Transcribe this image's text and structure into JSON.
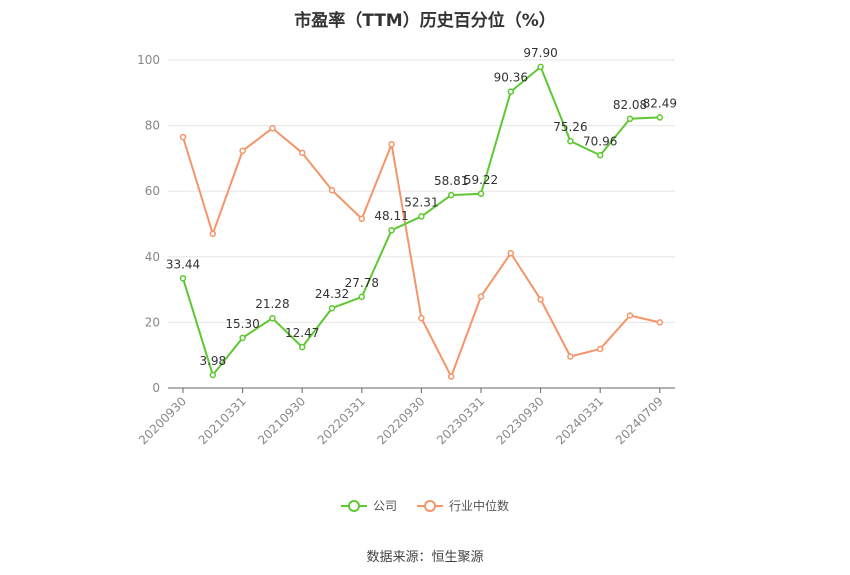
{
  "chart_data": {
    "type": "line",
    "title": "市盈率（TTM）历史百分位（%）",
    "source": "数据来源：恒生聚源",
    "ylim": [
      0,
      100
    ],
    "yticks": [
      0,
      20,
      40,
      60,
      80,
      100
    ],
    "xticks": [
      "20200930",
      "20210331",
      "20210930",
      "20220331",
      "20220930",
      "20230331",
      "20230930",
      "20240331",
      "20240709"
    ],
    "x": [
      "20200930",
      "20201231",
      "20210331",
      "20210630",
      "20210930",
      "20211231",
      "20220331",
      "20220630",
      "20220930",
      "20221231",
      "20230331",
      "20230630",
      "20230930",
      "20231231",
      "20240331",
      "20240630",
      "20240709"
    ],
    "grid": true,
    "legend_position": "bottom",
    "series": [
      {
        "name": "公司",
        "color": "#5ec832",
        "values": [
          33.44,
          3.98,
          15.3,
          21.28,
          12.47,
          24.32,
          27.78,
          48.11,
          52.31,
          58.81,
          59.22,
          90.36,
          97.9,
          75.26,
          70.96,
          82.08,
          82.49
        ],
        "labels": [
          "33.44",
          "3.98",
          "15.30",
          "21.28",
          "12.47",
          "24.32",
          "27.78",
          "48.11",
          "52.31",
          "58.81",
          "59.22",
          "90.36",
          "97.90",
          "75.26",
          "70.96",
          "82.08",
          "82.49"
        ]
      },
      {
        "name": "行业中位数",
        "color": "#f4956a",
        "values": [
          76.5,
          47,
          72.3,
          79.2,
          71.7,
          60.3,
          51.6,
          74.3,
          21.3,
          3.5,
          27.9,
          41.1,
          27,
          9.6,
          11.9,
          22.1,
          20
        ]
      }
    ]
  }
}
